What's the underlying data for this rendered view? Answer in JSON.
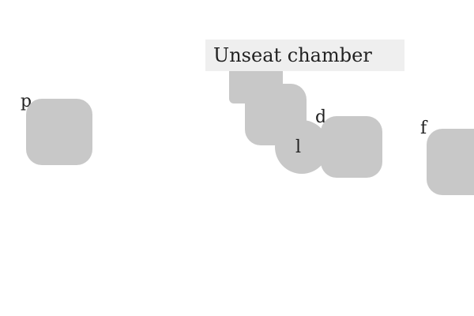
{
  "instruction": "Unseat chamber",
  "tiles": [
    {
      "id": "p",
      "label": "p"
    },
    {
      "id": "d",
      "label": "d"
    },
    {
      "id": "l",
      "label": "l"
    },
    {
      "id": "f",
      "label": "f"
    }
  ],
  "colors": {
    "background": "#ffffff",
    "tile": "#c8c8c8",
    "banner": "#efefef",
    "text": "#222222"
  }
}
